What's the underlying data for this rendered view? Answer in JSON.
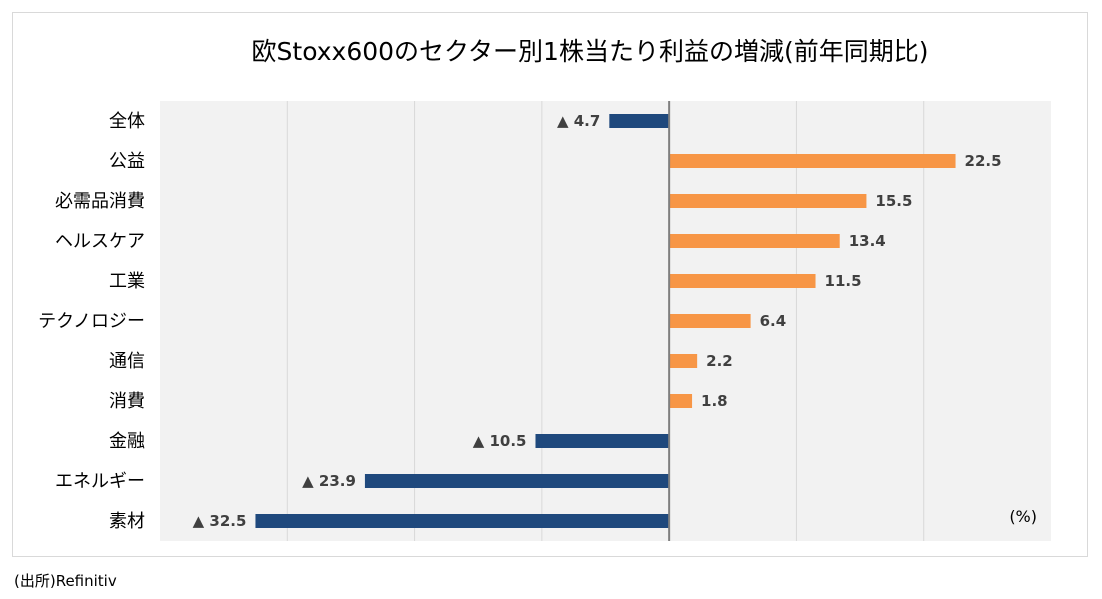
{
  "chart_data": {
    "type": "bar",
    "orientation": "horizontal",
    "title": "欧Stoxx600のセクター別1株当たり利益の増減(前年同期比)",
    "unit_label": "(%)",
    "negative_marker": "▲",
    "categories": [
      "全体",
      "公益",
      "必需品消費",
      "ヘルスケア",
      "工業",
      "テクノロジー",
      "通信",
      "消費",
      "金融",
      "エネルギー",
      "素材"
    ],
    "values": [
      -4.7,
      22.5,
      15.5,
      13.4,
      11.5,
      6.4,
      2.2,
      1.8,
      -10.5,
      -23.9,
      -32.5
    ],
    "xlim": [
      -40,
      30
    ],
    "grid_step": 10,
    "colors": {
      "positive": "#f79646",
      "negative": "#1f497d",
      "plot_background": "#f2f2f2",
      "gridline": "#d9d9d9",
      "zero_line": "#7f7f7f"
    }
  },
  "source": "(出所)Refinitiv"
}
